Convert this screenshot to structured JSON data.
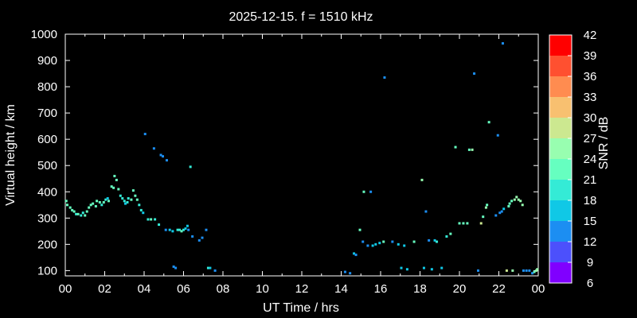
{
  "chart_data": {
    "type": "scatter",
    "title": "2025-12-15. f = 1510 kHz",
    "xlabel": "UT Time / hrs",
    "ylabel": "Virtual height / km",
    "xlim": [
      0,
      24
    ],
    "ylim": [
      80,
      1000
    ],
    "x_ticks": [
      "00",
      "02",
      "04",
      "06",
      "08",
      "10",
      "12",
      "14",
      "16",
      "18",
      "20",
      "22",
      "00"
    ],
    "y_ticks": [
      100,
      200,
      300,
      400,
      500,
      600,
      700,
      800,
      900,
      1000
    ],
    "colorbar": {
      "label": "SNR / dB",
      "ticks": [
        6,
        9,
        12,
        15,
        18,
        21,
        24,
        27,
        30,
        33,
        36,
        39,
        42
      ],
      "colors": [
        "#8000ff",
        "#4c50fc",
        "#1c8ef2",
        "#10c8e6",
        "#34ebd6",
        "#66ffc0",
        "#98feb0",
        "#cce890",
        "#f8c070",
        "#ff8c50",
        "#ff5030",
        "#ff0000"
      ]
    },
    "points": [
      {
        "x": 0.05,
        "y": 365,
        "snr": 21
      },
      {
        "x": 0.1,
        "y": 350,
        "snr": 21
      },
      {
        "x": 0.25,
        "y": 340,
        "snr": 22
      },
      {
        "x": 0.35,
        "y": 330,
        "snr": 22
      },
      {
        "x": 0.45,
        "y": 325,
        "snr": 21
      },
      {
        "x": 0.55,
        "y": 315,
        "snr": 20
      },
      {
        "x": 0.65,
        "y": 315,
        "snr": 21
      },
      {
        "x": 0.8,
        "y": 310,
        "snr": 20
      },
      {
        "x": 0.9,
        "y": 320,
        "snr": 20
      },
      {
        "x": 1.0,
        "y": 310,
        "snr": 21
      },
      {
        "x": 1.1,
        "y": 325,
        "snr": 22
      },
      {
        "x": 1.2,
        "y": 340,
        "snr": 21
      },
      {
        "x": 1.3,
        "y": 350,
        "snr": 21
      },
      {
        "x": 1.4,
        "y": 355,
        "snr": 22
      },
      {
        "x": 1.55,
        "y": 345,
        "snr": 21
      },
      {
        "x": 1.6,
        "y": 365,
        "snr": 22
      },
      {
        "x": 1.75,
        "y": 360,
        "snr": 21
      },
      {
        "x": 1.85,
        "y": 350,
        "snr": 20
      },
      {
        "x": 1.95,
        "y": 360,
        "snr": 21
      },
      {
        "x": 2.05,
        "y": 370,
        "snr": 18
      },
      {
        "x": 2.15,
        "y": 375,
        "snr": 17
      },
      {
        "x": 2.2,
        "y": 365,
        "snr": 21
      },
      {
        "x": 2.35,
        "y": 420,
        "snr": 22
      },
      {
        "x": 2.45,
        "y": 415,
        "snr": 21
      },
      {
        "x": 2.5,
        "y": 460,
        "snr": 23
      },
      {
        "x": 2.6,
        "y": 445,
        "snr": 22
      },
      {
        "x": 2.7,
        "y": 410,
        "snr": 21
      },
      {
        "x": 2.8,
        "y": 385,
        "snr": 20
      },
      {
        "x": 2.9,
        "y": 375,
        "snr": 19
      },
      {
        "x": 3.0,
        "y": 365,
        "snr": 18
      },
      {
        "x": 3.05,
        "y": 355,
        "snr": 17
      },
      {
        "x": 3.15,
        "y": 360,
        "snr": 18
      },
      {
        "x": 3.2,
        "y": 375,
        "snr": 20
      },
      {
        "x": 3.35,
        "y": 370,
        "snr": 21
      },
      {
        "x": 3.45,
        "y": 405,
        "snr": 23
      },
      {
        "x": 3.55,
        "y": 385,
        "snr": 22
      },
      {
        "x": 3.65,
        "y": 370,
        "snr": 21
      },
      {
        "x": 3.75,
        "y": 350,
        "snr": 20
      },
      {
        "x": 3.85,
        "y": 330,
        "snr": 18
      },
      {
        "x": 3.95,
        "y": 320,
        "snr": 17
      },
      {
        "x": 4.05,
        "y": 620,
        "snr": 12
      },
      {
        "x": 4.2,
        "y": 295,
        "snr": 20
      },
      {
        "x": 4.35,
        "y": 295,
        "snr": 21
      },
      {
        "x": 4.5,
        "y": 565,
        "snr": 12
      },
      {
        "x": 4.55,
        "y": 295,
        "snr": 20
      },
      {
        "x": 4.75,
        "y": 275,
        "snr": 19
      },
      {
        "x": 4.85,
        "y": 540,
        "snr": 12
      },
      {
        "x": 4.95,
        "y": 535,
        "snr": 12
      },
      {
        "x": 5.1,
        "y": 255,
        "snr": 14
      },
      {
        "x": 5.15,
        "y": 520,
        "snr": 12
      },
      {
        "x": 5.3,
        "y": 255,
        "snr": 15
      },
      {
        "x": 5.45,
        "y": 250,
        "snr": 16
      },
      {
        "x": 5.5,
        "y": 115,
        "snr": 12
      },
      {
        "x": 5.6,
        "y": 110,
        "snr": 12
      },
      {
        "x": 5.7,
        "y": 255,
        "snr": 18
      },
      {
        "x": 5.8,
        "y": 255,
        "snr": 20
      },
      {
        "x": 5.9,
        "y": 250,
        "snr": 21
      },
      {
        "x": 6.0,
        "y": 255,
        "snr": 18
      },
      {
        "x": 6.1,
        "y": 260,
        "snr": 16
      },
      {
        "x": 6.2,
        "y": 270,
        "snr": 15
      },
      {
        "x": 6.25,
        "y": 255,
        "snr": 13
      },
      {
        "x": 6.35,
        "y": 495,
        "snr": 18
      },
      {
        "x": 6.45,
        "y": 230,
        "snr": 13
      },
      {
        "x": 6.8,
        "y": 215,
        "snr": 13
      },
      {
        "x": 6.95,
        "y": 225,
        "snr": 13
      },
      {
        "x": 7.15,
        "y": 255,
        "snr": 14
      },
      {
        "x": 7.25,
        "y": 110,
        "snr": 18
      },
      {
        "x": 7.35,
        "y": 110,
        "snr": 17
      },
      {
        "x": 7.6,
        "y": 100,
        "snr": 13
      },
      {
        "x": 14.2,
        "y": 95,
        "snr": 12
      },
      {
        "x": 14.45,
        "y": 90,
        "snr": 12
      },
      {
        "x": 14.65,
        "y": 165,
        "snr": 15
      },
      {
        "x": 14.75,
        "y": 160,
        "snr": 14
      },
      {
        "x": 14.95,
        "y": 255,
        "snr": 21
      },
      {
        "x": 15.1,
        "y": 210,
        "snr": 12
      },
      {
        "x": 15.15,
        "y": 400,
        "snr": 21
      },
      {
        "x": 15.35,
        "y": 195,
        "snr": 14
      },
      {
        "x": 15.5,
        "y": 400,
        "snr": 12
      },
      {
        "x": 15.6,
        "y": 195,
        "snr": 16
      },
      {
        "x": 15.75,
        "y": 200,
        "snr": 15
      },
      {
        "x": 15.95,
        "y": 205,
        "snr": 16
      },
      {
        "x": 16.2,
        "y": 835,
        "snr": 12
      },
      {
        "x": 16.15,
        "y": 210,
        "snr": 21
      },
      {
        "x": 16.6,
        "y": 210,
        "snr": 14
      },
      {
        "x": 16.9,
        "y": 200,
        "snr": 16
      },
      {
        "x": 17.05,
        "y": 110,
        "snr": 15
      },
      {
        "x": 17.2,
        "y": 195,
        "snr": 16
      },
      {
        "x": 17.35,
        "y": 105,
        "snr": 17
      },
      {
        "x": 17.7,
        "y": 210,
        "snr": 21
      },
      {
        "x": 18.1,
        "y": 445,
        "snr": 24
      },
      {
        "x": 18.2,
        "y": 110,
        "snr": 15
      },
      {
        "x": 18.3,
        "y": 325,
        "snr": 13
      },
      {
        "x": 18.45,
        "y": 215,
        "snr": 14
      },
      {
        "x": 18.6,
        "y": 105,
        "snr": 17
      },
      {
        "x": 18.75,
        "y": 215,
        "snr": 17
      },
      {
        "x": 18.85,
        "y": 210,
        "snr": 18
      },
      {
        "x": 19.1,
        "y": 110,
        "snr": 15
      },
      {
        "x": 19.35,
        "y": 230,
        "snr": 20
      },
      {
        "x": 19.55,
        "y": 240,
        "snr": 22
      },
      {
        "x": 19.8,
        "y": 570,
        "snr": 22
      },
      {
        "x": 20.0,
        "y": 280,
        "snr": 21
      },
      {
        "x": 20.2,
        "y": 280,
        "snr": 22
      },
      {
        "x": 20.4,
        "y": 280,
        "snr": 22
      },
      {
        "x": 20.5,
        "y": 560,
        "snr": 22
      },
      {
        "x": 20.65,
        "y": 560,
        "snr": 26
      },
      {
        "x": 20.75,
        "y": 850,
        "snr": 12
      },
      {
        "x": 20.95,
        "y": 100,
        "snr": 13
      },
      {
        "x": 21.1,
        "y": 280,
        "snr": 29
      },
      {
        "x": 21.2,
        "y": 305,
        "snr": 23
      },
      {
        "x": 21.35,
        "y": 340,
        "snr": 24
      },
      {
        "x": 21.4,
        "y": 350,
        "snr": 23
      },
      {
        "x": 21.5,
        "y": 665,
        "snr": 21
      },
      {
        "x": 21.85,
        "y": 310,
        "snr": 13
      },
      {
        "x": 21.95,
        "y": 615,
        "snr": 12
      },
      {
        "x": 22.05,
        "y": 320,
        "snr": 13
      },
      {
        "x": 22.15,
        "y": 325,
        "snr": 14
      },
      {
        "x": 22.2,
        "y": 965,
        "snr": 12
      },
      {
        "x": 22.25,
        "y": 335,
        "snr": 16
      },
      {
        "x": 22.4,
        "y": 100,
        "snr": 27
      },
      {
        "x": 22.5,
        "y": 345,
        "snr": 23
      },
      {
        "x": 22.55,
        "y": 355,
        "snr": 21
      },
      {
        "x": 22.65,
        "y": 365,
        "snr": 23
      },
      {
        "x": 22.7,
        "y": 100,
        "snr": 24
      },
      {
        "x": 22.8,
        "y": 370,
        "snr": 24
      },
      {
        "x": 22.9,
        "y": 380,
        "snr": 26
      },
      {
        "x": 23.0,
        "y": 370,
        "snr": 26
      },
      {
        "x": 23.1,
        "y": 365,
        "snr": 24
      },
      {
        "x": 23.2,
        "y": 350,
        "snr": 24
      },
      {
        "x": 23.25,
        "y": 100,
        "snr": 13
      },
      {
        "x": 23.4,
        "y": 100,
        "snr": 13
      },
      {
        "x": 23.55,
        "y": 100,
        "snr": 14
      },
      {
        "x": 23.7,
        "y": 90,
        "snr": 13
      },
      {
        "x": 23.8,
        "y": 95,
        "snr": 22
      },
      {
        "x": 23.9,
        "y": 100,
        "snr": 26
      },
      {
        "x": 23.95,
        "y": 105,
        "snr": 24
      }
    ]
  }
}
